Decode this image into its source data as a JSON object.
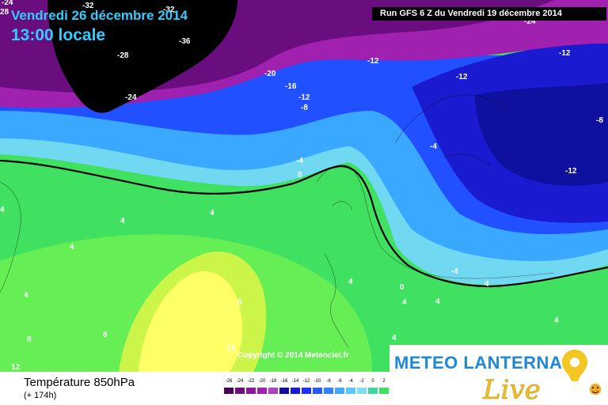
{
  "header": {
    "date": "Vendredi 26 décembre 2014",
    "time": "13:00 locale",
    "run": "Run GFS 6 Z du Vendredi 19 décembre 2014"
  },
  "map": {
    "copyright": "Copyright © 2014 Meteociel.fr",
    "zero_isotherm": "0",
    "contour_labels": [
      {
        "text": "-24"
      },
      {
        "text": "28"
      },
      {
        "text": "-32"
      },
      {
        "text": "-32"
      },
      {
        "text": "-24"
      },
      {
        "text": "-36"
      },
      {
        "text": "-28"
      },
      {
        "text": "-24"
      },
      {
        "text": "-20"
      },
      {
        "text": "-16"
      },
      {
        "text": "-12"
      },
      {
        "text": "-8"
      },
      {
        "text": "-12"
      },
      {
        "text": "-12"
      },
      {
        "text": "-12"
      },
      {
        "text": "-8"
      },
      {
        "text": "-12"
      },
      {
        "text": "-4"
      },
      {
        "text": "-4"
      },
      {
        "text": "-4"
      },
      {
        "text": "0"
      },
      {
        "text": "4"
      },
      {
        "text": "4"
      },
      {
        "text": "4"
      },
      {
        "text": "4"
      },
      {
        "text": "8"
      },
      {
        "text": "8"
      },
      {
        "text": "8"
      },
      {
        "text": "12"
      },
      {
        "text": "12"
      },
      {
        "text": "4"
      },
      {
        "text": "4"
      },
      {
        "text": "4"
      },
      {
        "text": "4"
      },
      {
        "text": "4"
      },
      {
        "text": "4"
      },
      {
        "text": "4"
      }
    ]
  },
  "footer": {
    "parameter": "Température 850hPa",
    "lead": "(+ 174h)"
  },
  "scale": {
    "labels": [
      "-26",
      "-24",
      "-22",
      "-20",
      "-18",
      "-16",
      "-14",
      "-12",
      "-10",
      "-8",
      "-6",
      "-4",
      "-2",
      "0",
      "2"
    ],
    "colors": [
      "#4a0060",
      "#6a0d7e",
      "#8a1a9a",
      "#a020b0",
      "#b040c0",
      "#1010a0",
      "#1a1ad0",
      "#2030ff",
      "#2858ff",
      "#3080ff",
      "#40a8ff",
      "#58c8ff",
      "#80dcf0",
      "#40d8a0",
      "#40e060"
    ]
  },
  "logo": {
    "brand": "METEO LANTERNA",
    "tagline": "Live"
  },
  "colors": {
    "title": "#33ccff",
    "polar_purple": "#5a0a6e",
    "cold_blue": "#2030ff",
    "mild_green": "#40e060",
    "warm_yellow": "#ffff66"
  }
}
